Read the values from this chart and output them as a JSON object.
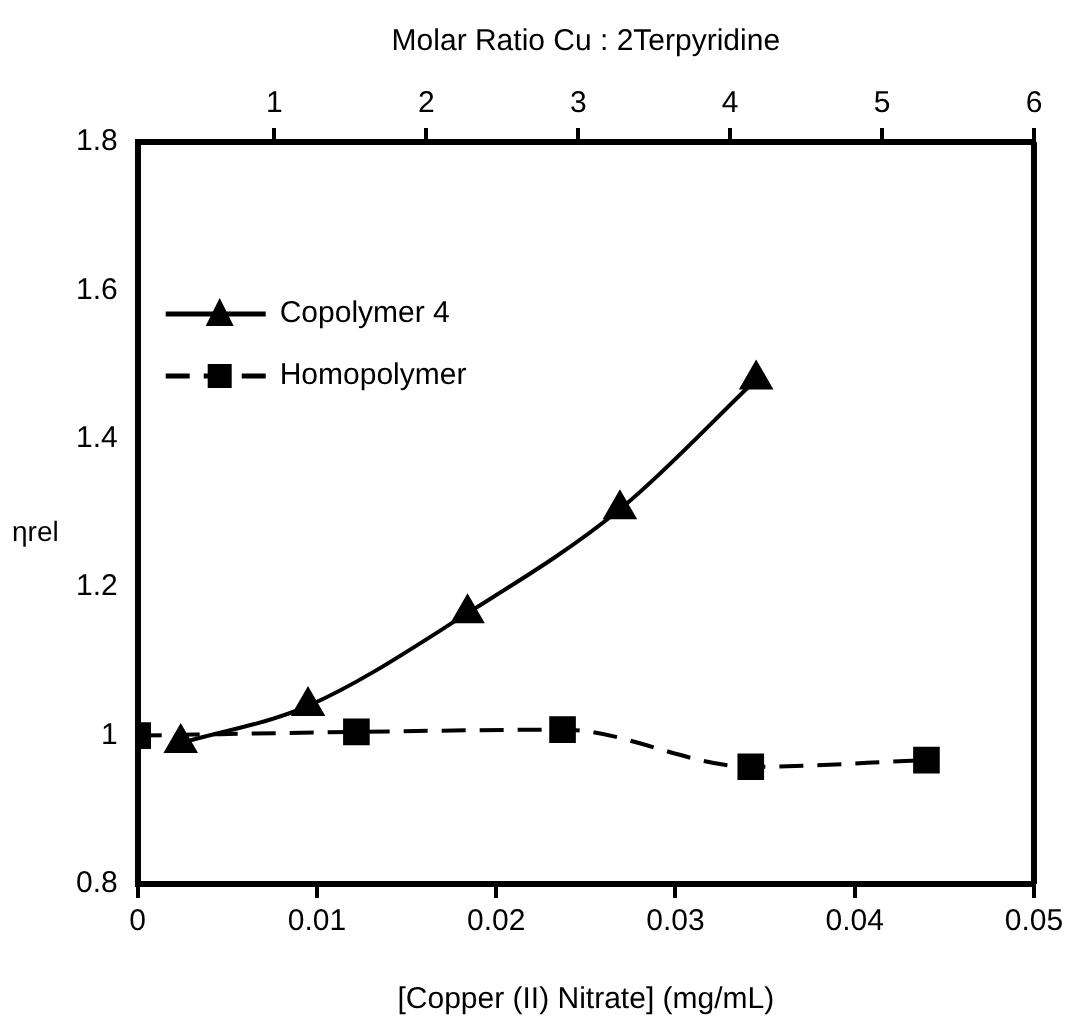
{
  "chart_data": {
    "type": "line",
    "xlabel": "[Copper (II) Nitrate] (mg/mL)",
    "ylabel": "ηrel",
    "x2label": "Molar Ratio Cu : 2Terpyridine",
    "series": [
      {
        "name": "Copolymer 4",
        "color": "#000000",
        "marker": "triangle",
        "line_style": "solid",
        "x": [
          0.0024,
          0.0095,
          0.0184,
          0.0269,
          0.0345
        ],
        "values": [
          0.99,
          1.04,
          1.165,
          1.305,
          1.48
        ]
      },
      {
        "name": "Homopolymer",
        "color": "#000000",
        "marker": "square",
        "line_style": "dashed",
        "x": [
          0,
          0.0122,
          0.0237,
          0.0342,
          0.044
        ],
        "values": [
          1.0,
          1.005,
          1.008,
          0.958,
          0.967
        ]
      }
    ],
    "xlim": [
      0,
      0.05
    ],
    "xticks": [
      0,
      0.01,
      0.02,
      0.03,
      0.04,
      0.05
    ],
    "ylim": [
      0.8,
      1.8
    ],
    "yticks": [
      0.8,
      1,
      1.2,
      1.4,
      1.6,
      1.8
    ],
    "x2lim": [
      0.1,
      6
    ],
    "x2ticks": [
      1,
      2,
      3,
      4,
      5,
      6
    ],
    "grid": false,
    "legend": "top left"
  }
}
